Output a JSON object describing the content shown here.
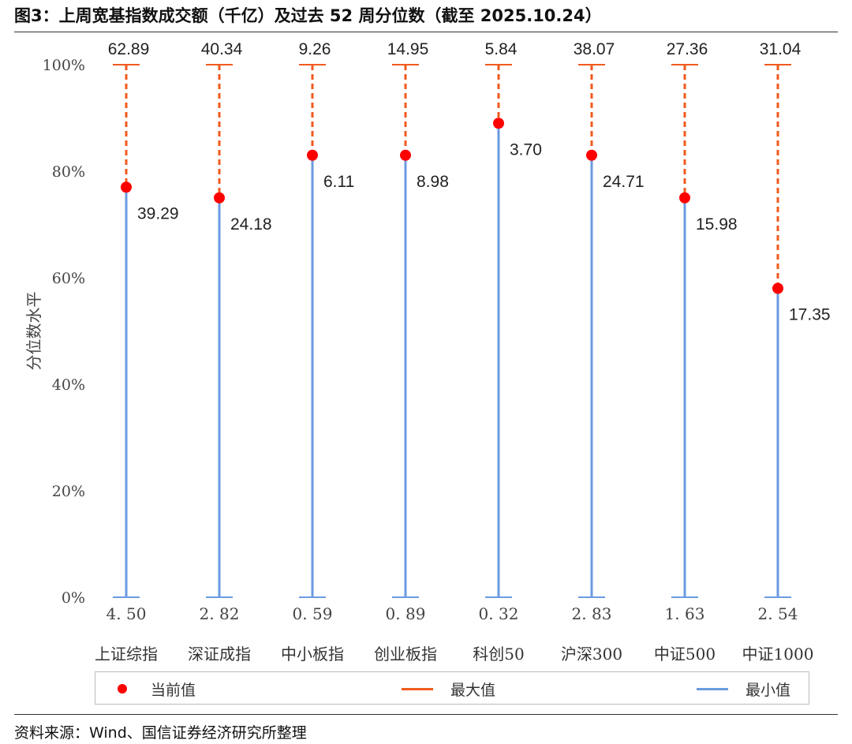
{
  "figure": {
    "title": "图3：上周宽基指数成交额（千亿）及过去 52 周分位数（截至 2025.10.24）",
    "source": "资料来源：Wind、国信证券经济研究所整理"
  },
  "colors": {
    "current": "#ff0000",
    "max": "#f05a1e",
    "min": "#6a9be0"
  },
  "chart_data": {
    "type": "range-dot",
    "categories": [
      "上证综指",
      "深证成指",
      "中小板指",
      "创业板指",
      "科创50",
      "沪深300",
      "中证500",
      "中证1000"
    ],
    "ylabel": "分位数水平",
    "ylim": [
      0,
      100
    ],
    "yticks": [
      "0%",
      "20%",
      "40%",
      "60%",
      "80%",
      "100%"
    ],
    "current_percentile": [
      77,
      75,
      83,
      83,
      89,
      83,
      75,
      58
    ],
    "current_value_labels": [
      "39.29",
      "24.18",
      "6.11",
      "8.98",
      "3.70",
      "24.71",
      "15.98",
      "17.35"
    ],
    "max_value_labels": [
      "62.89",
      "40.34",
      "9.26",
      "14.95",
      "5.84",
      "38.07",
      "27.36",
      "31.04"
    ],
    "min_value_labels": [
      "4. 50",
      "2. 82",
      "0. 59",
      "0. 89",
      "0. 32",
      "2. 83",
      "1. 63",
      "2. 54"
    ],
    "legend": [
      "当前值",
      "最大值",
      "最小值"
    ],
    "grid": false,
    "legend_position": "bottom"
  }
}
